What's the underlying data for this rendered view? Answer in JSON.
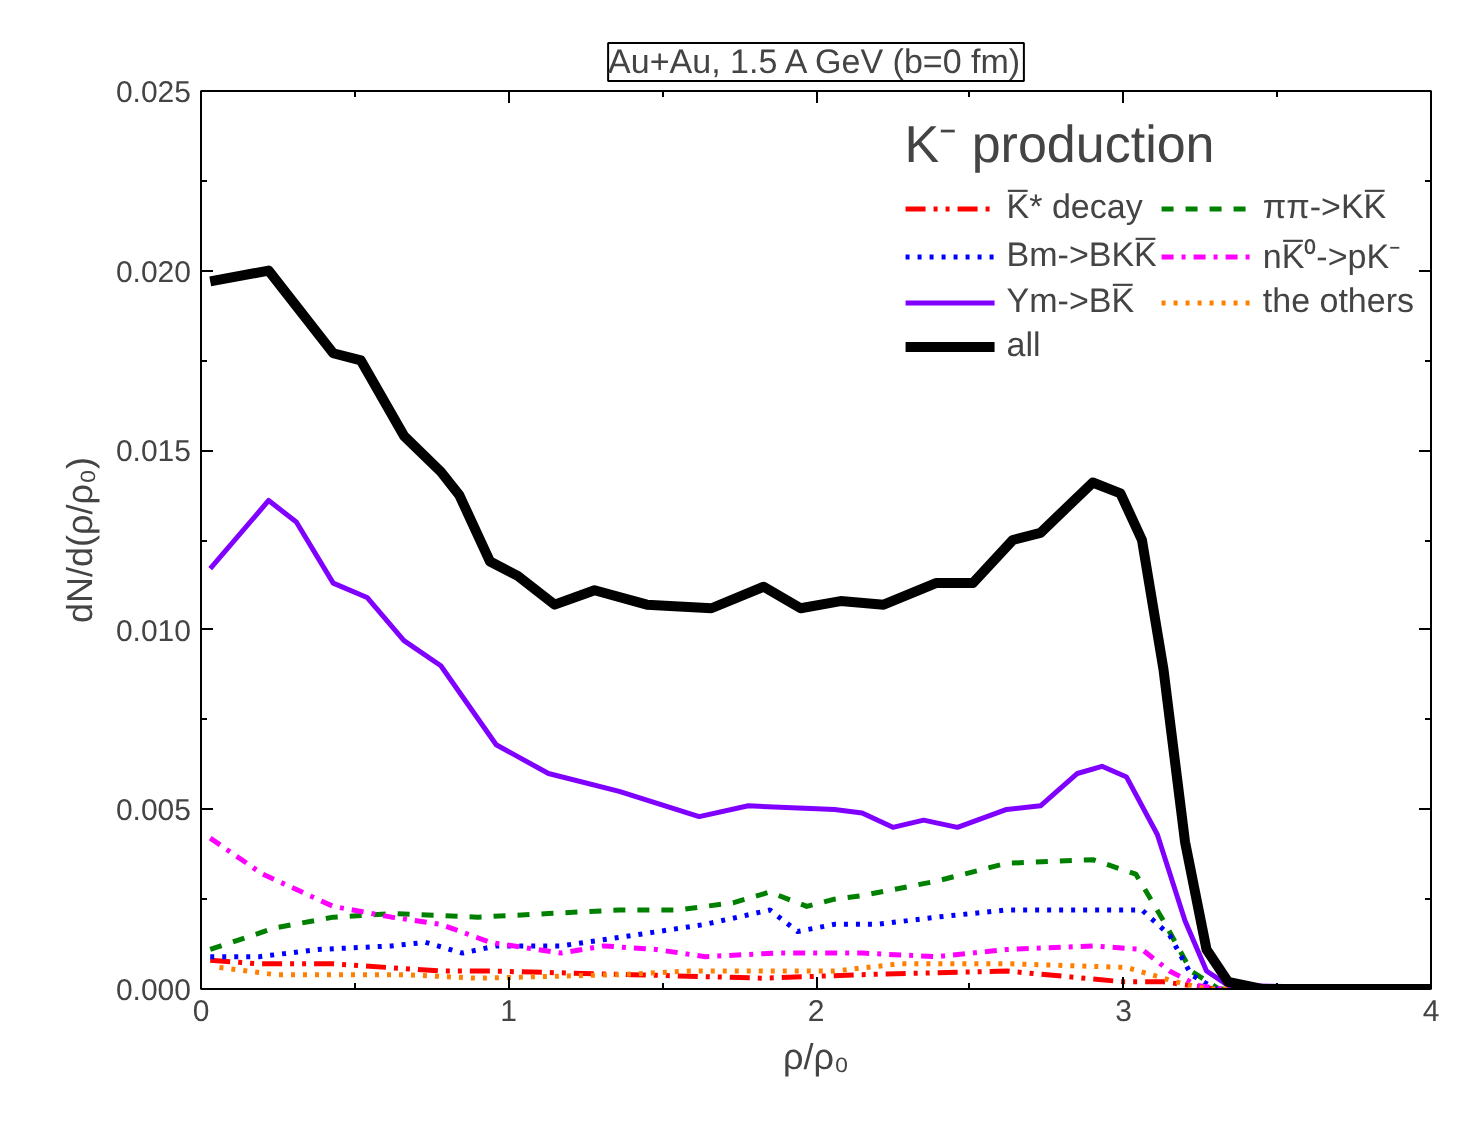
{
  "chart_data": {
    "type": "line",
    "title": "Au+Au, 1.5 A GeV (b=0 fm)",
    "xlabel": "ρ/ρ₀",
    "ylabel": "dN/d(ρ/ρ₀)",
    "legend_title": "K⁻ production",
    "legend": "top right",
    "grid": false,
    "xlim": [
      0,
      4
    ],
    "xticks": [
      0,
      1,
      2,
      3,
      4
    ],
    "ylim": [
      0,
      0.025
    ],
    "yticks": [
      {
        "value": 0,
        "label": "0.000"
      },
      {
        "value": 0.005,
        "label": "0.005"
      },
      {
        "value": 0.01,
        "label": "0.010"
      },
      {
        "value": 0.015,
        "label": "0.015"
      },
      {
        "value": 0.02,
        "label": "0.020"
      },
      {
        "value": 0.025,
        "label": "0.025"
      }
    ],
    "series": [
      {
        "name": "K̅* decay",
        "color": "#ff0000",
        "line_style": "dashdotdot",
        "x": [
          0.03,
          0.19,
          0.43,
          0.78,
          0.94,
          1.4,
          1.83,
          2.15,
          2.62,
          3.0,
          3.13,
          3.3,
          4.0
        ],
        "values": [
          0.0008,
          0.0007,
          0.0007,
          0.0005,
          0.0005,
          0.0004,
          0.0003,
          0.0004,
          0.0005,
          0.0002,
          0.0002,
          0.0,
          0.0
        ]
      },
      {
        "name": "ππ->KK̅",
        "color": "#008000",
        "line_style": "dashed",
        "x": [
          0.03,
          0.24,
          0.43,
          0.62,
          0.9,
          1.13,
          1.36,
          1.55,
          1.73,
          1.85,
          1.97,
          2.06,
          2.15,
          2.39,
          2.62,
          2.9,
          3.04,
          3.13,
          3.22,
          3.31,
          4.0
        ],
        "values": [
          0.0011,
          0.0017,
          0.002,
          0.0021,
          0.002,
          0.0021,
          0.0022,
          0.0022,
          0.0024,
          0.0027,
          0.0023,
          0.0025,
          0.0026,
          0.003,
          0.0035,
          0.0036,
          0.0032,
          0.0019,
          0.0005,
          0.0,
          0.0
        ]
      },
      {
        "name": "Bm->BKK̅",
        "color": "#0000ff",
        "line_style": "dotted",
        "x": [
          0.03,
          0.19,
          0.38,
          0.62,
          0.73,
          0.85,
          0.96,
          1.17,
          1.41,
          1.64,
          1.85,
          1.94,
          2.06,
          2.2,
          2.39,
          2.62,
          2.87,
          3.06,
          3.15,
          3.22,
          3.3,
          4.0
        ],
        "values": [
          0.0009,
          0.0009,
          0.0011,
          0.0012,
          0.0013,
          0.001,
          0.0012,
          0.0012,
          0.0015,
          0.0018,
          0.0022,
          0.0016,
          0.0018,
          0.0018,
          0.002,
          0.0022,
          0.0022,
          0.0022,
          0.0015,
          0.0004,
          0.0,
          0.0
        ]
      },
      {
        "name": "nK̅⁰->pK⁻",
        "color": "#ff00ff",
        "line_style": "dashdot",
        "x": [
          0.03,
          0.2,
          0.43,
          0.62,
          0.78,
          0.94,
          1.17,
          1.31,
          1.48,
          1.64,
          1.87,
          2.06,
          2.15,
          2.39,
          2.62,
          2.9,
          3.06,
          3.15,
          3.24,
          3.32,
          4.0
        ],
        "values": [
          0.0042,
          0.0032,
          0.0023,
          0.002,
          0.0018,
          0.0013,
          0.001,
          0.0012,
          0.0011,
          0.0009,
          0.001,
          0.001,
          0.001,
          0.0009,
          0.0011,
          0.0012,
          0.0011,
          0.0005,
          0.0001,
          0.0,
          0.0
        ]
      },
      {
        "name": "Ym->BK̅",
        "color": "#8000ff",
        "line_style": "solid",
        "x": [
          0.03,
          0.22,
          0.31,
          0.43,
          0.54,
          0.66,
          0.78,
          0.96,
          1.13,
          1.36,
          1.62,
          1.78,
          2.06,
          2.15,
          2.25,
          2.35,
          2.46,
          2.62,
          2.73,
          2.85,
          2.93,
          3.01,
          3.11,
          3.2,
          3.27,
          3.34,
          4.0
        ],
        "values": [
          0.0117,
          0.0136,
          0.013,
          0.0113,
          0.0109,
          0.0097,
          0.009,
          0.0068,
          0.006,
          0.0055,
          0.0048,
          0.0051,
          0.005,
          0.0049,
          0.0045,
          0.0047,
          0.0045,
          0.005,
          0.0051,
          0.006,
          0.0062,
          0.0059,
          0.0043,
          0.0019,
          0.0005,
          0.0001,
          0.0
        ]
      },
      {
        "name": "the others",
        "color": "#ff8000",
        "line_style": "dotted",
        "x": [
          0.06,
          0.24,
          0.66,
          0.9,
          1.36,
          1.59,
          2.06,
          2.27,
          2.64,
          3.01,
          3.17,
          3.27,
          4.0
        ],
        "values": [
          0.0006,
          0.0004,
          0.0004,
          0.0003,
          0.0004,
          0.0005,
          0.0005,
          0.0007,
          0.0007,
          0.0006,
          0.0002,
          0.0,
          0.0
        ]
      },
      {
        "name": "all",
        "color": "#000000",
        "line_style": "solid",
        "x": [
          0.03,
          0.22,
          0.43,
          0.52,
          0.66,
          0.78,
          0.84,
          0.94,
          1.03,
          1.15,
          1.28,
          1.45,
          1.66,
          1.83,
          1.95,
          2.08,
          2.22,
          2.39,
          2.51,
          2.64,
          2.73,
          2.9,
          2.99,
          3.06,
          3.13,
          3.2,
          3.27,
          3.34,
          3.45,
          4.0
        ],
        "values": [
          0.0197,
          0.02,
          0.0177,
          0.0175,
          0.0154,
          0.0144,
          0.01375,
          0.0119,
          0.0115,
          0.0107,
          0.0111,
          0.0107,
          0.0106,
          0.0112,
          0.0106,
          0.0108,
          0.0107,
          0.0113,
          0.0113,
          0.0125,
          0.0127,
          0.0141,
          0.0138,
          0.0125,
          0.0089,
          0.0041,
          0.0011,
          0.0002,
          0.0,
          0.0
        ]
      }
    ]
  }
}
